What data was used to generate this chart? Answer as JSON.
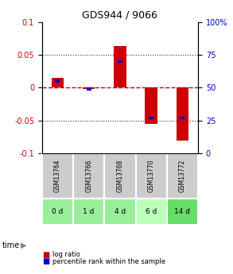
{
  "title": "GDS944 / 9066",
  "samples": [
    "GSM13764",
    "GSM13766",
    "GSM13768",
    "GSM13770",
    "GSM13772"
  ],
  "time_labels": [
    "0 d",
    "1 d",
    "4 d",
    "6 d",
    "14 d"
  ],
  "log_ratios": [
    0.015,
    -0.002,
    0.063,
    -0.055,
    -0.08
  ],
  "percentile_ranks": [
    0.55,
    0.49,
    0.7,
    0.27,
    0.27
  ],
  "ylim": [
    -0.1,
    0.1
  ],
  "y2lim": [
    0,
    100
  ],
  "yticks": [
    -0.1,
    -0.05,
    0,
    0.05,
    0.1
  ],
  "y2ticks": [
    0,
    25,
    50,
    75,
    100
  ],
  "bar_color": "#cc0000",
  "percentile_color": "#0000cc",
  "zero_line_color": "#cc0000",
  "dot_line_color": "#333333",
  "sample_bg_color": "#cccccc",
  "time_bg_color": "#99ee99",
  "time_bg_color2": "#bbffbb",
  "left_label_color": "#cc0000",
  "right_label_color": "#0000cc",
  "bar_width": 0.4,
  "percentile_bar_width": 0.15
}
